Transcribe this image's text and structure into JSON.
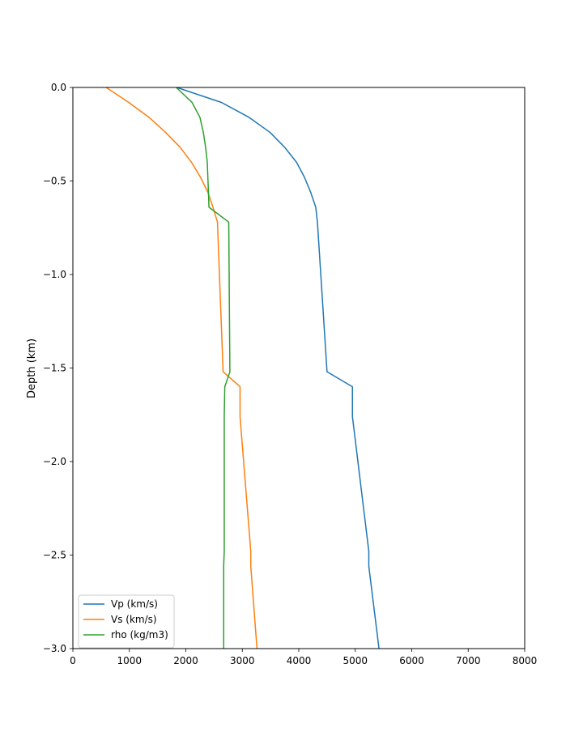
{
  "chart_data": {
    "type": "line",
    "title": "",
    "xlabel": "",
    "ylabel": "Depth (km)",
    "xlim": [
      0,
      8000
    ],
    "ylim": [
      -3.0,
      0.0
    ],
    "x_ticks": [
      "0",
      "1000",
      "2000",
      "3000",
      "4000",
      "5000",
      "6000",
      "7000",
      "8000"
    ],
    "x_tick_values": [
      0,
      1000,
      2000,
      3000,
      4000,
      5000,
      6000,
      7000,
      8000
    ],
    "y_ticks": [
      "0.0",
      "−0.5",
      "−1.0",
      "−1.5",
      "−2.0",
      "−2.5",
      "−3.0"
    ],
    "y_tick_values": [
      0.0,
      -0.5,
      -1.0,
      -1.5,
      -2.0,
      -2.5,
      -3.0
    ],
    "grid": false,
    "legend_position": "lower-left",
    "series": [
      {
        "name": "Vp (km/s)",
        "color": "#1f77b4",
        "points": [
          [
            1840,
            0.0
          ],
          [
            2630,
            -0.08
          ],
          [
            3120,
            -0.16
          ],
          [
            3490,
            -0.24
          ],
          [
            3750,
            -0.32
          ],
          [
            3960,
            -0.4
          ],
          [
            4100,
            -0.48
          ],
          [
            4210,
            -0.56
          ],
          [
            4300,
            -0.64
          ],
          [
            4330,
            -0.72
          ],
          [
            4500,
            -1.52
          ],
          [
            4950,
            -1.6
          ],
          [
            4950,
            -1.76
          ],
          [
            5240,
            -2.48
          ],
          [
            5240,
            -2.56
          ],
          [
            5420,
            -3.0
          ]
        ]
      },
      {
        "name": "Vs (km/s)",
        "color": "#ff7f0e",
        "points": [
          [
            590,
            0.0
          ],
          [
            990,
            -0.08
          ],
          [
            1350,
            -0.16
          ],
          [
            1640,
            -0.24
          ],
          [
            1900,
            -0.32
          ],
          [
            2100,
            -0.4
          ],
          [
            2260,
            -0.48
          ],
          [
            2390,
            -0.56
          ],
          [
            2480,
            -0.64
          ],
          [
            2560,
            -0.72
          ],
          [
            2660,
            -1.52
          ],
          [
            2960,
            -1.6
          ],
          [
            2960,
            -1.76
          ],
          [
            3150,
            -2.48
          ],
          [
            3150,
            -2.56
          ],
          [
            3260,
            -3.0
          ]
        ]
      },
      {
        "name": "rho (kg/m3)",
        "color": "#2ca02c",
        "points": [
          [
            1830,
            0.0
          ],
          [
            2110,
            -0.08
          ],
          [
            2250,
            -0.16
          ],
          [
            2310,
            -0.24
          ],
          [
            2350,
            -0.32
          ],
          [
            2380,
            -0.4
          ],
          [
            2390,
            -0.48
          ],
          [
            2400,
            -0.56
          ],
          [
            2410,
            -0.64
          ],
          [
            2760,
            -0.72
          ],
          [
            2780,
            -1.52
          ],
          [
            2690,
            -1.6
          ],
          [
            2680,
            -1.76
          ],
          [
            2680,
            -2.48
          ],
          [
            2670,
            -2.56
          ],
          [
            2670,
            -3.0
          ]
        ]
      }
    ]
  }
}
